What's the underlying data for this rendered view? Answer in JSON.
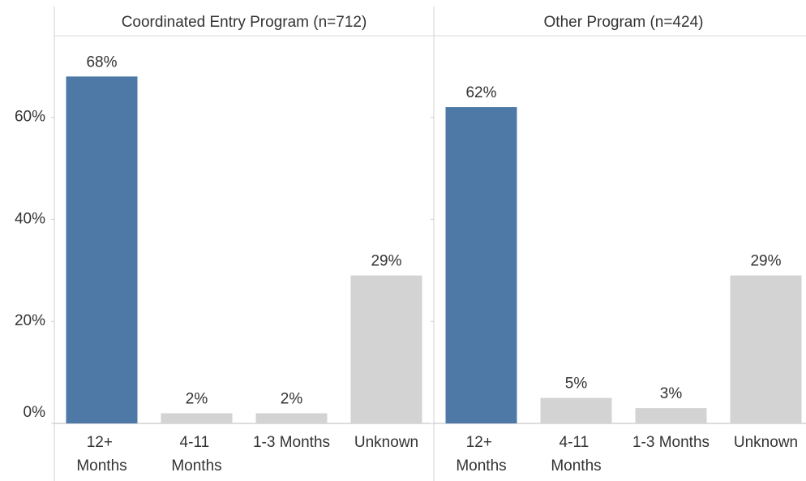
{
  "chart_data": [
    {
      "type": "bar",
      "title": "Coordinated Entry Program (n=712)",
      "categories": [
        "12+ Months",
        "4-11 Months",
        "1-3 Months",
        "Unknown"
      ],
      "values": [
        68,
        2,
        2,
        29
      ],
      "value_labels": [
        "68%",
        "2%",
        "2%",
        "29%"
      ],
      "colors": [
        "#4e79a7",
        "#d3d3d3",
        "#d3d3d3",
        "#d3d3d3"
      ],
      "ylim": [
        0,
        76
      ],
      "yticks": [
        {
          "value": 0,
          "label": "0%"
        },
        {
          "value": 20,
          "label": "20%"
        },
        {
          "value": 40,
          "label": "40%"
        },
        {
          "value": 60,
          "label": "60%"
        }
      ]
    },
    {
      "type": "bar",
      "title": "Other Program (n=424)",
      "categories": [
        "12+ Months",
        "4-11 Months",
        "1-3 Months",
        "Unknown"
      ],
      "values": [
        62,
        5,
        3,
        29
      ],
      "value_labels": [
        "62%",
        "5%",
        "3%",
        "29%"
      ],
      "colors": [
        "#4e79a7",
        "#d3d3d3",
        "#d3d3d3",
        "#d3d3d3"
      ],
      "ylim": [
        0,
        76
      ],
      "yticks": [
        {
          "value": 0,
          "label": "0%"
        },
        {
          "value": 20,
          "label": "20%"
        },
        {
          "value": 40,
          "label": "40%"
        },
        {
          "value": 60,
          "label": "60%"
        }
      ]
    }
  ]
}
